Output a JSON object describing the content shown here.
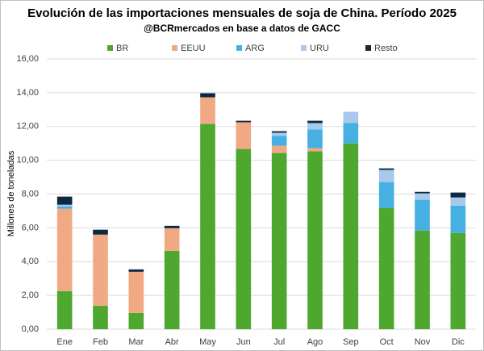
{
  "chart_data": {
    "type": "stacked_bar",
    "title": "Evolución de las importaciones mensuales de soja de China. Período 2025",
    "subtitle": "@BCRmercados  en base a datos de GACC",
    "y_label": "Millones de toneladas",
    "categories": [
      "Ene",
      "Feb",
      "Mar",
      "Abr",
      "May",
      "Jun",
      "Jul",
      "Ago",
      "Sep",
      "Oct",
      "Nov",
      "Dic"
    ],
    "series": [
      {
        "name": "BR",
        "color": "#4ea72e",
        "values": [
          2.25,
          1.39,
          0.96,
          4.64,
          12.15,
          10.67,
          10.43,
          10.53,
          11.0,
          7.18,
          5.84,
          5.69
        ]
      },
      {
        "name": "EEUU",
        "color": "#f1a983",
        "values": [
          4.88,
          4.21,
          2.44,
          1.34,
          1.58,
          1.58,
          0.43,
          0.19,
          0,
          0,
          0,
          0
        ]
      },
      {
        "name": "ARG",
        "color": "#45b0e1",
        "values": [
          0.14,
          0,
          0,
          0,
          0,
          0,
          0.58,
          1.1,
          1.2,
          1.53,
          1.82,
          1.63
        ]
      },
      {
        "name": "URU",
        "color": "#a6c9ec",
        "values": [
          0.1,
          0,
          0,
          0,
          0,
          0,
          0.19,
          0.38,
          0.67,
          0.72,
          0.38,
          0.48
        ]
      },
      {
        "name": "Resto",
        "color": "#0e2841",
        "values": [
          0.48,
          0.29,
          0.14,
          0.14,
          0.24,
          0.09,
          0.09,
          0.14,
          0,
          0.09,
          0.09,
          0.29
        ]
      }
    ],
    "ylim": [
      0,
      16
    ],
    "yticks": [
      {
        "value": 0,
        "label": "0,00"
      },
      {
        "value": 2,
        "label": "2,00"
      },
      {
        "value": 4,
        "label": "4,00"
      },
      {
        "value": 6,
        "label": "6,00"
      },
      {
        "value": 8,
        "label": "8,00"
      },
      {
        "value": 10,
        "label": "10,00"
      },
      {
        "value": 12,
        "label": "12,00"
      },
      {
        "value": 14,
        "label": "14,00"
      },
      {
        "value": 16,
        "label": "16,00"
      }
    ],
    "grid": true,
    "legend": "top"
  }
}
